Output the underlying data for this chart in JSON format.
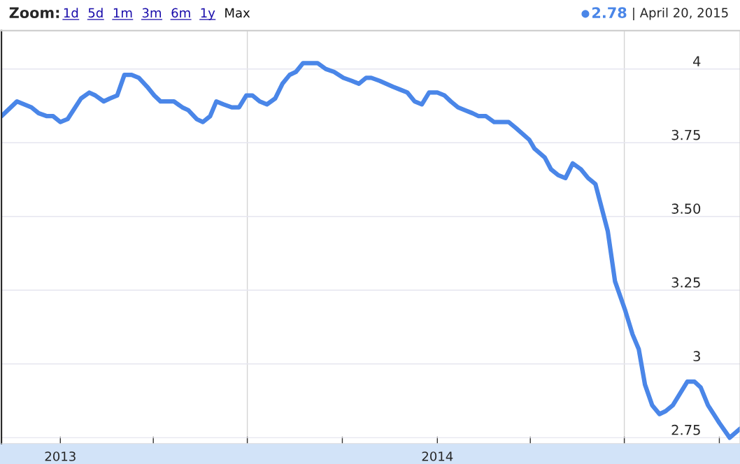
{
  "chart_data": {
    "type": "line",
    "annotations": [
      "Zoom:",
      "1d",
      "5d",
      "1m",
      "3m",
      "6m",
      "1y",
      "Max",
      "2.78",
      "| April 20, 2015"
    ],
    "x": [
      "2012-11-05",
      "2012-11-20",
      "2012-12-04",
      "2012-12-11",
      "2012-12-19",
      "2012-12-25",
      "2013-01-01",
      "2013-01-08",
      "2013-01-21",
      "2013-01-29",
      "2013-02-04",
      "2013-02-12",
      "2013-02-18",
      "2013-02-25",
      "2013-03-04",
      "2013-03-11",
      "2013-03-18",
      "2013-03-26",
      "2013-04-02",
      "2013-04-08",
      "2013-04-15",
      "2013-04-21",
      "2013-04-29",
      "2013-05-05",
      "2013-05-13",
      "2013-05-19",
      "2013-05-26",
      "2013-06-01",
      "2013-06-08",
      "2013-06-16",
      "2013-06-23",
      "2013-06-30",
      "2013-07-06",
      "2013-07-13",
      "2013-07-20",
      "2013-07-28",
      "2013-08-04",
      "2013-08-11",
      "2013-08-17",
      "2013-08-24",
      "2013-08-31",
      "2013-09-07",
      "2013-09-15",
      "2013-09-23",
      "2013-10-02",
      "2013-10-10",
      "2013-10-17",
      "2013-10-24",
      "2013-10-29",
      "2013-11-06",
      "2013-11-19",
      "2013-11-26",
      "2013-12-03",
      "2013-12-10",
      "2013-12-17",
      "2013-12-24",
      "2014-01-01",
      "2014-01-08",
      "2014-01-14",
      "2014-01-21",
      "2014-01-28",
      "2014-02-04",
      "2014-02-10",
      "2014-02-17",
      "2014-02-25",
      "2014-03-04",
      "2014-03-11",
      "2014-03-18",
      "2014-03-31",
      "2014-04-05",
      "2014-04-15",
      "2014-04-21",
      "2014-04-28",
      "2014-05-05",
      "2014-05-12",
      "2014-05-20",
      "2014-05-27",
      "2014-06-03",
      "2014-06-09",
      "2014-06-15",
      "2014-06-22",
      "2014-07-02",
      "2014-07-09",
      "2014-07-15",
      "2014-07-21",
      "2014-07-28",
      "2014-08-04",
      "2014-08-10",
      "2014-08-17",
      "2014-08-31",
      "2014-09-07",
      "2014-09-13",
      "2014-09-20",
      "2014-10-01",
      "2014-10-11",
      "2014-10-21"
    ],
    "series": [
      {
        "color": "#4a86e8",
        "values": [
          3.84,
          3.89,
          3.87,
          3.85,
          3.84,
          3.84,
          3.82,
          3.83,
          3.9,
          3.92,
          3.91,
          3.89,
          3.9,
          3.91,
          3.98,
          3.98,
          3.97,
          3.94,
          3.91,
          3.89,
          3.89,
          3.89,
          3.87,
          3.86,
          3.83,
          3.82,
          3.84,
          3.89,
          3.88,
          3.87,
          3.87,
          3.91,
          3.91,
          3.89,
          3.88,
          3.9,
          3.95,
          3.98,
          3.99,
          4.02,
          4.02,
          4.02,
          4.0,
          3.99,
          3.97,
          3.96,
          3.95,
          3.97,
          3.97,
          3.96,
          3.94,
          3.93,
          3.92,
          3.89,
          3.88,
          3.92,
          3.92,
          3.91,
          3.89,
          3.87,
          3.86,
          3.85,
          3.84,
          3.84,
          3.82,
          3.82,
          3.82,
          3.8,
          3.76,
          3.73,
          3.7,
          3.66,
          3.64,
          3.63,
          3.68,
          3.66,
          3.63,
          3.61,
          3.53,
          3.45,
          3.28,
          3.18,
          3.1,
          3.05,
          2.93,
          2.86,
          2.83,
          2.84,
          2.86,
          2.94,
          2.94,
          2.92,
          2.86,
          2.8,
          2.75,
          2.78
        ]
      }
    ],
    "xlim": [
      "2012-11-05",
      "2014-10-21"
    ],
    "xticks": [
      {
        "value": "2013-01-01",
        "label": "2013"
      },
      {
        "value": "2013-04-01",
        "label": null
      },
      {
        "value": "2013-07-01",
        "label": null
      },
      {
        "value": "2013-10-01",
        "label": null
      },
      {
        "value": "2014-01-01",
        "label": "2014"
      },
      {
        "value": "2014-04-01",
        "label": null
      },
      {
        "value": "2014-07-01",
        "label": null
      },
      {
        "value": "2014-10-01",
        "label": null
      }
    ],
    "ylim": [
      2.73,
      4.13
    ],
    "yticks": [
      {
        "value": 2.75,
        "label": "2.75"
      },
      3,
      {
        "value": 3.25,
        "label": "3.25"
      },
      {
        "value": 3.5,
        "label": "3.50"
      },
      {
        "value": 3.75,
        "label": "3.75"
      },
      4
    ],
    "ref_lines": [
      {
        "axis": "x",
        "value": "2013-07-01",
        "color": "#d4d4d4"
      },
      {
        "axis": "x",
        "value": "2014-07-01",
        "color": "#d4d4d4"
      }
    ],
    "grid": "y",
    "legend": false,
    "marker": "none",
    "line_style": "solid"
  }
}
